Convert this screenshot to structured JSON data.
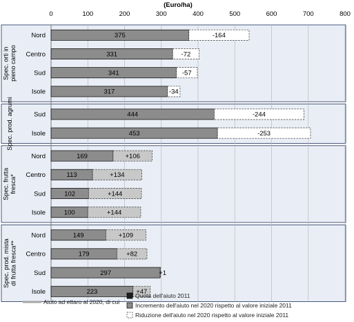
{
  "chart_data": {
    "type": "bar",
    "orientation": "horizontal",
    "stacked": true,
    "unit_label": "(Euro/ha)",
    "xlim": [
      0,
      800
    ],
    "x_ticks": [
      "0",
      "100",
      "200",
      "300",
      "400",
      "500",
      "600",
      "700",
      "800"
    ],
    "groups": [
      {
        "label": "Spec. orti in pieno campo",
        "rows": [
          {
            "region": "Nord",
            "quota": 375,
            "quota_label": "375",
            "change": -164,
            "change_label": "-164"
          },
          {
            "region": "Centro",
            "quota": 331,
            "quota_label": "331",
            "change": -72,
            "change_label": "-72"
          },
          {
            "region": "Sud",
            "quota": 341,
            "quota_label": "341",
            "change": -57,
            "change_label": "-57"
          },
          {
            "region": "Isole",
            "quota": 317,
            "quota_label": "317",
            "change": -34,
            "change_label": "-34"
          }
        ]
      },
      {
        "label": "Spec. prod. agrumi",
        "rows": [
          {
            "region": "Sud",
            "quota": 444,
            "quota_label": "444",
            "change": -244,
            "change_label": "-244"
          },
          {
            "region": "Isole",
            "quota": 453,
            "quota_label": "453",
            "change": -253,
            "change_label": "-253"
          }
        ]
      },
      {
        "label": "Spec. frutta fresca*",
        "rows": [
          {
            "region": "Nord",
            "quota": 169,
            "quota_label": "169",
            "change": 106,
            "change_label": "+106"
          },
          {
            "region": "Centro",
            "quota": 113,
            "quota_label": "113",
            "change": 134,
            "change_label": "+134"
          },
          {
            "region": "Sud",
            "quota": 102,
            "quota_label": "102",
            "change": 144,
            "change_label": "+144"
          },
          {
            "region": "Isole",
            "quota": 100,
            "quota_label": "100",
            "change": 144,
            "change_label": "+144"
          }
        ]
      },
      {
        "label": "Spec. prod. mista di frutta fresca**",
        "rows": [
          {
            "region": "Nord",
            "quota": 149,
            "quota_label": "149",
            "change": 109,
            "change_label": "+109"
          },
          {
            "region": "Centro",
            "quota": 179,
            "quota_label": "179",
            "change": 82,
            "change_label": "+82"
          },
          {
            "region": "Sud",
            "quota": 297,
            "quota_label": "297",
            "change": 1,
            "change_label": "+1"
          },
          {
            "region": "Isole",
            "quota": 223,
            "quota_label": "223",
            "change": 47,
            "change_label": "+47"
          }
        ]
      }
    ],
    "legend": {
      "total": "Aiuto ad ettaro al 2020, di cui",
      "quota": "Quota dell'aiuto 2011",
      "incremento": "Incremento dell'aiuto nel 2020 rispetto al valore iniziale 2011",
      "riduzione": "Riduzione dell'aiuto nel 2020 rispetto al valore iniziale 2011"
    },
    "colors": {
      "quota": "#8c8c8c",
      "incremento": "#c8c8c8",
      "riduzione": "#ffffff",
      "total_line": "#a6a6a6",
      "panel_bg": "#e9eef6",
      "panel_border": "#1f2f5a",
      "grid": "#b8b8b8"
    }
  }
}
